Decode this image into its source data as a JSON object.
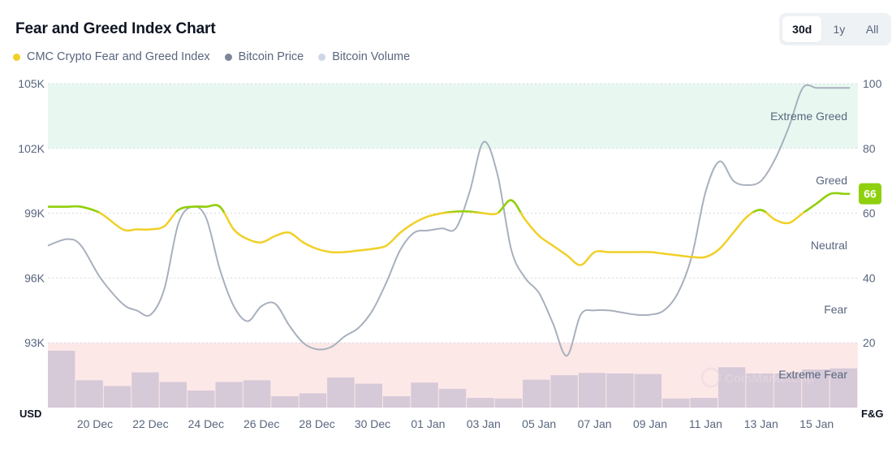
{
  "title": "Fear and Greed Index Chart",
  "range_buttons": [
    {
      "label": "30d",
      "active": true
    },
    {
      "label": "1y",
      "active": false
    },
    {
      "label": "All",
      "active": false
    }
  ],
  "legend": [
    {
      "label": "CMC Crypto Fear and Greed Index",
      "color": "#f0d027"
    },
    {
      "label": "Bitcoin Price",
      "color": "#7d8597"
    },
    {
      "label": "Bitcoin Volume",
      "color": "#cfd6e4"
    }
  ],
  "colors": {
    "fg_line": "#f0d027",
    "fg_greed_line": "#8ed00d",
    "price_line": "#a8b0bd",
    "volume_bar": "#d6c9d8",
    "extreme_greed_band": "#e8f8f1",
    "extreme_fear_band": "#fde8e8",
    "badge": "#8ed00d"
  },
  "watermark": "CoinMarketCap",
  "chart_data": {
    "type": "line",
    "x_labels": [
      "20 Dec",
      "22 Dec",
      "24 Dec",
      "26 Dec",
      "28 Dec",
      "30 Dec",
      "01 Jan",
      "03 Jan",
      "05 Jan",
      "07 Jan",
      "09 Jan",
      "11 Jan",
      "13 Jan",
      "15 Jan"
    ],
    "left_axis": {
      "title": "USD",
      "ticks": [
        "93K",
        "96K",
        "99K",
        "102K",
        "105K"
      ],
      "range": [
        90000,
        105000
      ]
    },
    "right_axis": {
      "title": "F&G",
      "ticks": [
        "20",
        "40",
        "60",
        "80",
        "100"
      ],
      "range": [
        0,
        100
      ]
    },
    "zones": [
      {
        "label": "Extreme Greed",
        "from": 80,
        "to": 100,
        "band": true
      },
      {
        "label": "Greed",
        "value": 60
      },
      {
        "label": "Neutral",
        "value": 50
      },
      {
        "label": "Fear",
        "value": 30
      },
      {
        "label": "Extreme Fear",
        "from": 0,
        "to": 20,
        "band": true
      }
    ],
    "current_value": "66",
    "series": [
      {
        "name": "CMC Crypto Fear and Greed Index",
        "axis": "right",
        "x": [
          18.3,
          19.0,
          19.5,
          20.2,
          21.0,
          21.5,
          22.0,
          22.5,
          23.0,
          23.5,
          24.0,
          24.5,
          25.0,
          25.5,
          26.0,
          26.5,
          27.0,
          27.5,
          28.0,
          28.5,
          29.0,
          29.5,
          30.0,
          30.5,
          31.0,
          31.5,
          32.0,
          32.5,
          33.0,
          33.5,
          34.0,
          34.5,
          35.0,
          35.5,
          36.0,
          36.5,
          37.0,
          37.5,
          38.0,
          38.5,
          39.0,
          39.5,
          40.0,
          40.5,
          41.0,
          41.5,
          42.0,
          42.5,
          43.0,
          43.5,
          44.0,
          44.5,
          45.0,
          45.5,
          46.0,
          46.5,
          47.0,
          47.2
        ],
        "values": [
          62,
          62,
          62,
          60,
          55,
          55,
          55,
          56,
          61,
          62,
          62,
          62,
          55,
          52,
          51,
          53,
          54,
          51,
          49,
          48,
          48,
          48.5,
          49,
          50,
          54,
          57,
          59,
          60,
          60.5,
          60.5,
          60,
          60,
          64,
          58,
          53,
          50,
          47,
          44,
          48,
          48,
          48,
          48,
          48,
          47.5,
          47,
          46.5,
          46.5,
          49,
          54,
          59,
          61,
          58,
          57,
          60,
          63,
          66,
          66,
          66
        ]
      },
      {
        "name": "Bitcoin Price",
        "axis": "left",
        "x": [
          18.3,
          19.0,
          19.5,
          20.2,
          21.0,
          21.5,
          22.0,
          22.5,
          23.0,
          23.5,
          24.0,
          24.5,
          25.0,
          25.5,
          26.0,
          26.5,
          27.0,
          27.5,
          28.0,
          28.5,
          29.0,
          29.5,
          30.0,
          30.5,
          31.0,
          31.5,
          32.0,
          32.5,
          33.0,
          33.5,
          34.0,
          34.5,
          35.0,
          35.5,
          36.0,
          36.5,
          37.0,
          37.5,
          38.0,
          38.5,
          39.0,
          39.5,
          40.0,
          40.5,
          41.0,
          41.5,
          42.0,
          42.5,
          43.0,
          43.5,
          44.0,
          44.5,
          45.0,
          45.5,
          46.0,
          46.5,
          47.0,
          47.2
        ],
        "values": [
          97500,
          97800,
          97500,
          96000,
          94800,
          94500,
          94300,
          95500,
          98500,
          99300,
          98800,
          96400,
          94700,
          94000,
          94700,
          94800,
          93800,
          93000,
          92700,
          92800,
          93300,
          93700,
          94500,
          95800,
          97300,
          98100,
          98200,
          98300,
          98300,
          100000,
          102300,
          100800,
          97300,
          96000,
          95300,
          93900,
          92400,
          94300,
          94500,
          94500,
          94400,
          94300,
          94300,
          94500,
          95300,
          97000,
          100000,
          101400,
          100500,
          100300,
          100500,
          101500,
          103000,
          104800,
          104800,
          104800,
          104800,
          104800
        ]
      },
      {
        "name": "Bitcoin Volume",
        "values": [
          100,
          48,
          38,
          62,
          45,
          30,
          45,
          48,
          20,
          25,
          53,
          42,
          20,
          44,
          33,
          17,
          16,
          49,
          57,
          61,
          60,
          59,
          16,
          17,
          71,
          60,
          60,
          67,
          69
        ]
      }
    ]
  }
}
